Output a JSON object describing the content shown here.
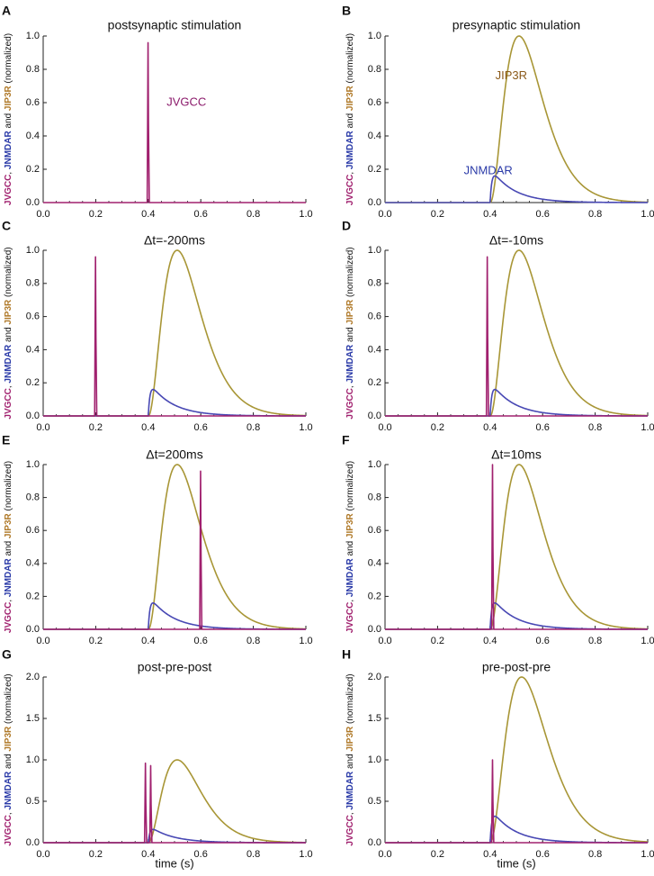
{
  "chart_data": [
    {
      "letter": "A",
      "title": "postsynaptic stimulation",
      "type": "line",
      "ylim": [
        0,
        1.0
      ],
      "yticks": [
        "0.0",
        "0.2",
        "0.4",
        "0.6",
        "0.8",
        "1.0"
      ],
      "xlim": [
        0,
        1.0
      ],
      "xticks": [
        "0.0",
        "0.2",
        "0.4",
        "0.6",
        "0.8",
        "1.0"
      ],
      "ylabel": {
        "p1": "JVGCC",
        "sep1": ", ",
        "p2": "JNMDAR",
        "sep2": " and ",
        "p3": "JIP3R",
        "p4": " (normalized)"
      },
      "series": [
        {
          "name": "JVGCC",
          "color": "#a0206e",
          "kind": "spike",
          "t": [
            0.4
          ],
          "peak": [
            0.96
          ],
          "width": 0.004
        }
      ],
      "annotations": [
        {
          "text": "JVGCC",
          "color": "#8b1a6b",
          "x": 0.47,
          "y": 0.6
        }
      ]
    },
    {
      "letter": "B",
      "title": "presynaptic stimulation",
      "type": "line",
      "ylim": [
        0,
        1.0
      ],
      "yticks": [
        "0.0",
        "0.2",
        "0.4",
        "0.6",
        "0.8",
        "1.0"
      ],
      "xlim": [
        0,
        1.0
      ],
      "xticks": [
        "0.0",
        "0.2",
        "0.4",
        "0.6",
        "0.8",
        "1.0"
      ],
      "ylabel": {
        "p1": "JVGCC",
        "sep1": ", ",
        "p2": "JNMDAR",
        "sep2": " and ",
        "p3": "JIP3R",
        "p4": " (normalized)"
      },
      "series": [
        {
          "name": "JIP3R",
          "color": "#a89636",
          "kind": "ip3",
          "onset": 0.4,
          "peakTime": 0.51,
          "amp": 1.0
        },
        {
          "name": "JNMDAR",
          "color": "#4848b4",
          "kind": "nmda",
          "onset": 0.4,
          "amp": 0.2
        }
      ],
      "annotations": [
        {
          "text": "JIP3R",
          "color": "#8b5a1a",
          "x": 0.42,
          "y": 0.76
        },
        {
          "text": "JNMDAR",
          "color": "#2a3aa8",
          "x": 0.3,
          "y": 0.19
        }
      ]
    },
    {
      "letter": "C",
      "title": "Δt=-200ms",
      "type": "line",
      "ylim": [
        0,
        1.0
      ],
      "yticks": [
        "0.0",
        "0.2",
        "0.4",
        "0.6",
        "0.8",
        "1.0"
      ],
      "xlim": [
        0,
        1.0
      ],
      "xticks": [
        "0.0",
        "0.2",
        "0.4",
        "0.6",
        "0.8",
        "1.0"
      ],
      "ylabel": {
        "p1": "JVGCC",
        "sep1": ", ",
        "p2": "JNMDAR",
        "sep2": " and ",
        "p3": "JIP3R",
        "p4": " (normalized)"
      },
      "series": [
        {
          "name": "JIP3R",
          "color": "#a89636",
          "kind": "ip3",
          "onset": 0.4,
          "peakTime": 0.51,
          "amp": 1.0
        },
        {
          "name": "JNMDAR",
          "color": "#4848b4",
          "kind": "nmda",
          "onset": 0.4,
          "amp": 0.2
        },
        {
          "name": "JVGCC",
          "color": "#a0206e",
          "kind": "spike",
          "t": [
            0.2
          ],
          "peak": [
            0.96
          ],
          "width": 0.004
        }
      ],
      "annotations": []
    },
    {
      "letter": "D",
      "title": "Δt=-10ms",
      "type": "line",
      "ylim": [
        0,
        1.0
      ],
      "yticks": [
        "0.0",
        "0.2",
        "0.4",
        "0.6",
        "0.8",
        "1.0"
      ],
      "xlim": [
        0,
        1.0
      ],
      "xticks": [
        "0.0",
        "0.2",
        "0.4",
        "0.6",
        "0.8",
        "1.0"
      ],
      "ylabel": {
        "p1": "JVGCC",
        "sep1": ", ",
        "p2": "JNMDAR",
        "sep2": " and ",
        "p3": "JIP3R",
        "p4": " (normalized)"
      },
      "series": [
        {
          "name": "JIP3R",
          "color": "#a89636",
          "kind": "ip3",
          "onset": 0.4,
          "peakTime": 0.51,
          "amp": 1.0
        },
        {
          "name": "JNMDAR",
          "color": "#4848b4",
          "kind": "nmda",
          "onset": 0.4,
          "amp": 0.2
        },
        {
          "name": "JVGCC",
          "color": "#a0206e",
          "kind": "spike",
          "t": [
            0.39
          ],
          "peak": [
            0.96
          ],
          "width": 0.004
        }
      ],
      "annotations": []
    },
    {
      "letter": "E",
      "title": "Δt=200ms",
      "type": "line",
      "ylim": [
        0,
        1.0
      ],
      "yticks": [
        "0.0",
        "0.2",
        "0.4",
        "0.6",
        "0.8",
        "1.0"
      ],
      "xlim": [
        0,
        1.0
      ],
      "xticks": [
        "0.0",
        "0.2",
        "0.4",
        "0.6",
        "0.8",
        "1.0"
      ],
      "ylabel": {
        "p1": "JVGCC",
        "sep1": ", ",
        "p2": "JNMDAR",
        "sep2": " and ",
        "p3": "JIP3R",
        "p4": " (normalized)"
      },
      "series": [
        {
          "name": "JIP3R",
          "color": "#a89636",
          "kind": "ip3",
          "onset": 0.4,
          "peakTime": 0.51,
          "amp": 1.0
        },
        {
          "name": "JNMDAR",
          "color": "#4848b4",
          "kind": "nmda",
          "onset": 0.4,
          "amp": 0.2
        },
        {
          "name": "JVGCC",
          "color": "#a0206e",
          "kind": "spike",
          "t": [
            0.6
          ],
          "peak": [
            0.96
          ],
          "width": 0.004
        }
      ],
      "annotations": []
    },
    {
      "letter": "F",
      "title": "Δt=10ms",
      "type": "line",
      "ylim": [
        0,
        1.0
      ],
      "yticks": [
        "0.0",
        "0.2",
        "0.4",
        "0.6",
        "0.8",
        "1.0"
      ],
      "xlim": [
        0,
        1.0
      ],
      "xticks": [
        "0.0",
        "0.2",
        "0.4",
        "0.6",
        "0.8",
        "1.0"
      ],
      "ylabel": {
        "p1": "JVGCC",
        "sep1": ", ",
        "p2": "JNMDAR",
        "sep2": " and ",
        "p3": "JIP3R",
        "p4": " (normalized)"
      },
      "series": [
        {
          "name": "JIP3R",
          "color": "#a89636",
          "kind": "ip3",
          "onset": 0.4,
          "peakTime": 0.51,
          "amp": 1.0
        },
        {
          "name": "JNMDAR",
          "color": "#4848b4",
          "kind": "nmda",
          "onset": 0.4,
          "amp": 0.2
        },
        {
          "name": "JVGCC",
          "color": "#a0206e",
          "kind": "spike",
          "t": [
            0.41
          ],
          "peak": [
            1.0
          ],
          "width": 0.004
        }
      ],
      "annotations": []
    },
    {
      "letter": "G",
      "title": "post-pre-post",
      "type": "line",
      "ylim": [
        0,
        2.0
      ],
      "yticks": [
        "0.0",
        "0.5",
        "1.0",
        "1.5",
        "2.0"
      ],
      "xlim": [
        0,
        1.0
      ],
      "xticks": [
        "0.0",
        "0.2",
        "0.4",
        "0.6",
        "0.8",
        "1.0"
      ],
      "ylabel": {
        "p1": "JVGCC",
        "sep1": ", ",
        "p2": "JNMDAR",
        "sep2": " and ",
        "p3": "JIP3R",
        "p4": " (normalized)"
      },
      "series": [
        {
          "name": "JIP3R",
          "color": "#a89636",
          "kind": "ip3",
          "onset": 0.4,
          "peakTime": 0.51,
          "amp": 1.0
        },
        {
          "name": "JNMDAR",
          "color": "#4848b4",
          "kind": "nmda",
          "onset": 0.4,
          "amp": 0.2
        },
        {
          "name": "JVGCC",
          "color": "#a0206e",
          "kind": "spike",
          "t": [
            0.39,
            0.41
          ],
          "peak": [
            0.96,
            0.93
          ],
          "width": 0.004
        }
      ],
      "annotations": []
    },
    {
      "letter": "H",
      "title": "pre-post-pre",
      "type": "line",
      "ylim": [
        0,
        2.0
      ],
      "yticks": [
        "0.0",
        "0.5",
        "1.0",
        "1.5",
        "2.0"
      ],
      "xlim": [
        0,
        1.0
      ],
      "xticks": [
        "0.0",
        "0.2",
        "0.4",
        "0.6",
        "0.8",
        "1.0"
      ],
      "ylabel": {
        "p1": "JVGCC",
        "sep1": ", ",
        "p2": "JNMDAR",
        "sep2": " and ",
        "p3": "JIP3R",
        "p4": " (normalized)"
      },
      "series": [
        {
          "name": "JIP3R",
          "color": "#a89636",
          "kind": "ip3",
          "onset": 0.4,
          "peakTime": 0.52,
          "amp": 2.0
        },
        {
          "name": "JNMDAR",
          "color": "#4848b4",
          "kind": "nmda",
          "onset": 0.4,
          "amp": 0.4
        },
        {
          "name": "JVGCC",
          "color": "#a0206e",
          "kind": "spike",
          "t": [
            0.41
          ],
          "peak": [
            1.0
          ],
          "width": 0.004
        }
      ],
      "annotations": []
    }
  ],
  "xaxis_label": "time (s)",
  "colors": {
    "axis": "#222222",
    "text": "#111111"
  }
}
